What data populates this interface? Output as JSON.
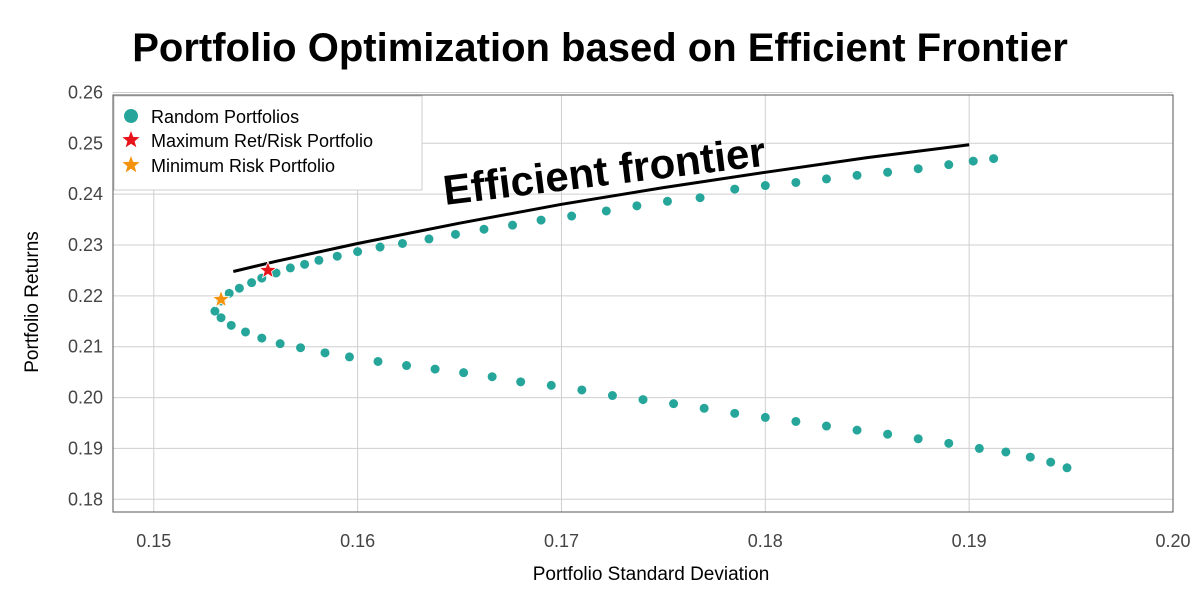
{
  "chart_data": {
    "type": "scatter",
    "title": "Portfolio Optimization based on Efficient Frontier",
    "xlabel": "Portfolio Standard Deviation",
    "ylabel": "Portfolio Returns",
    "xlim": [
      0.148,
      0.2
    ],
    "ylim": [
      0.1775,
      0.2595
    ],
    "xticks": [
      0.15,
      0.16,
      0.17,
      0.18,
      0.19,
      0.2
    ],
    "xtick_labels": [
      "0.15",
      "0.16",
      "0.17",
      "0.18",
      "0.19",
      "0.20"
    ],
    "yticks": [
      0.18,
      0.19,
      0.2,
      0.21,
      0.22,
      0.23,
      0.24,
      0.25,
      0.26
    ],
    "ytick_labels": [
      "0.18",
      "0.19",
      "0.20",
      "0.21",
      "0.22",
      "0.23",
      "0.24",
      "0.25",
      "0.26"
    ],
    "grid": true,
    "legend_position": "top-left",
    "series": [
      {
        "name": "Random Portfolios",
        "marker": "circle",
        "color": "#26a69a",
        "points": [
          [
            0.153,
            0.217
          ],
          [
            0.1533,
            0.219
          ],
          [
            0.1537,
            0.2205
          ],
          [
            0.1542,
            0.2215
          ],
          [
            0.1548,
            0.2226
          ],
          [
            0.1553,
            0.2235
          ],
          [
            0.156,
            0.2245
          ],
          [
            0.1567,
            0.2255
          ],
          [
            0.1574,
            0.2262
          ],
          [
            0.1581,
            0.227
          ],
          [
            0.159,
            0.2278
          ],
          [
            0.16,
            0.2287
          ],
          [
            0.1611,
            0.2296
          ],
          [
            0.1622,
            0.2303
          ],
          [
            0.1635,
            0.2312
          ],
          [
            0.1648,
            0.2321
          ],
          [
            0.1662,
            0.2331
          ],
          [
            0.1676,
            0.2339
          ],
          [
            0.169,
            0.2349
          ],
          [
            0.1705,
            0.2357
          ],
          [
            0.1722,
            0.2367
          ],
          [
            0.1737,
            0.2377
          ],
          [
            0.1752,
            0.2386
          ],
          [
            0.1768,
            0.2393
          ],
          [
            0.1785,
            0.241
          ],
          [
            0.18,
            0.2417
          ],
          [
            0.1815,
            0.2423
          ],
          [
            0.183,
            0.243
          ],
          [
            0.1845,
            0.2437
          ],
          [
            0.186,
            0.2443
          ],
          [
            0.1875,
            0.245
          ],
          [
            0.189,
            0.2458
          ],
          [
            0.1902,
            0.2465
          ],
          [
            0.1912,
            0.247
          ],
          [
            0.1533,
            0.2157
          ],
          [
            0.1538,
            0.2142
          ],
          [
            0.1545,
            0.2129
          ],
          [
            0.1553,
            0.2117
          ],
          [
            0.1562,
            0.2106
          ],
          [
            0.1572,
            0.2098
          ],
          [
            0.1584,
            0.2088
          ],
          [
            0.1596,
            0.208
          ],
          [
            0.161,
            0.2071
          ],
          [
            0.1624,
            0.2063
          ],
          [
            0.1638,
            0.2056
          ],
          [
            0.1652,
            0.2049
          ],
          [
            0.1666,
            0.2041
          ],
          [
            0.168,
            0.2031
          ],
          [
            0.1695,
            0.2024
          ],
          [
            0.171,
            0.2015
          ],
          [
            0.1725,
            0.2004
          ],
          [
            0.174,
            0.1996
          ],
          [
            0.1755,
            0.1988
          ],
          [
            0.177,
            0.1979
          ],
          [
            0.1785,
            0.1969
          ],
          [
            0.18,
            0.1961
          ],
          [
            0.1815,
            0.1953
          ],
          [
            0.183,
            0.1944
          ],
          [
            0.1845,
            0.1936
          ],
          [
            0.186,
            0.1928
          ],
          [
            0.1875,
            0.1919
          ],
          [
            0.189,
            0.191
          ],
          [
            0.1905,
            0.19
          ],
          [
            0.1918,
            0.1893
          ],
          [
            0.193,
            0.1883
          ],
          [
            0.194,
            0.1873
          ],
          [
            0.1948,
            0.1862
          ]
        ]
      },
      {
        "name": "Maximum Ret/Risk Portfolio",
        "marker": "star",
        "color": "#e8141b",
        "points": [
          [
            0.1556,
            0.225
          ]
        ]
      },
      {
        "name": "Minimum Risk Portfolio",
        "marker": "star",
        "color": "#f5920d",
        "points": [
          [
            0.1533,
            0.2193
          ]
        ]
      }
    ],
    "frontier": {
      "annotation": "Efficient frontier",
      "color": "#000000",
      "points": [
        [
          0.1539,
          0.2248
        ],
        [
          0.156,
          0.2268
        ],
        [
          0.16,
          0.2303
        ],
        [
          0.165,
          0.2343
        ],
        [
          0.17,
          0.238
        ],
        [
          0.175,
          0.2413
        ],
        [
          0.18,
          0.2443
        ],
        [
          0.185,
          0.2472
        ],
        [
          0.19,
          0.2497
        ]
      ]
    }
  }
}
